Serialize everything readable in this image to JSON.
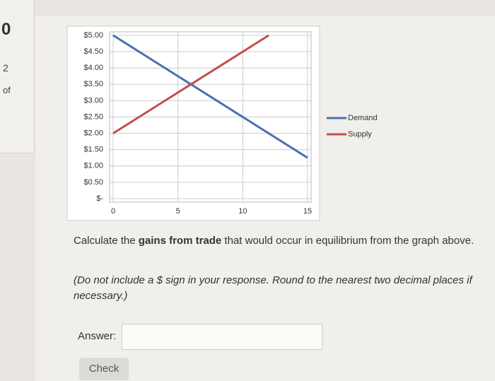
{
  "sidebar": {
    "number": "0",
    "page": "2",
    "of": "of"
  },
  "chart_data": {
    "type": "line",
    "x": [
      0,
      6,
      12,
      15
    ],
    "series": [
      {
        "name": "Demand",
        "color": "#4a6fb0",
        "values": [
          5,
          3.5,
          2,
          1.25
        ]
      },
      {
        "name": "Supply",
        "color": "#c0504d",
        "values": [
          2,
          3.5,
          5,
          null
        ]
      }
    ],
    "xlim": [
      0,
      15
    ],
    "xticks": [
      0,
      5,
      10,
      15
    ],
    "ylim": [
      0,
      5
    ],
    "yticks": [
      {
        "value": 0,
        "label": "$-"
      },
      {
        "value": 0.5,
        "label": "$0.50"
      },
      {
        "value": 1,
        "label": "$1.00"
      },
      {
        "value": 1.5,
        "label": "$1.50"
      },
      {
        "value": 2,
        "label": "$2.00"
      },
      {
        "value": 2.5,
        "label": "$2.50"
      },
      {
        "value": 3,
        "label": "$3.00"
      },
      {
        "value": 3.5,
        "label": "$3.50"
      },
      {
        "value": 4,
        "label": "$4.00"
      },
      {
        "value": 4.5,
        "label": "$4.50"
      },
      {
        "value": 5,
        "label": "$5.00"
      }
    ],
    "grid": true,
    "legend": "right"
  },
  "question": {
    "before": "Calculate the ",
    "bold": "gains from trade",
    "after": " that would occur in equilibrium from the graph above.",
    "instruction": "(Do not include a $ sign in your response. Round to the nearest two decimal places if necessary.)"
  },
  "answer_label": "Answer:",
  "check_button": "Check"
}
